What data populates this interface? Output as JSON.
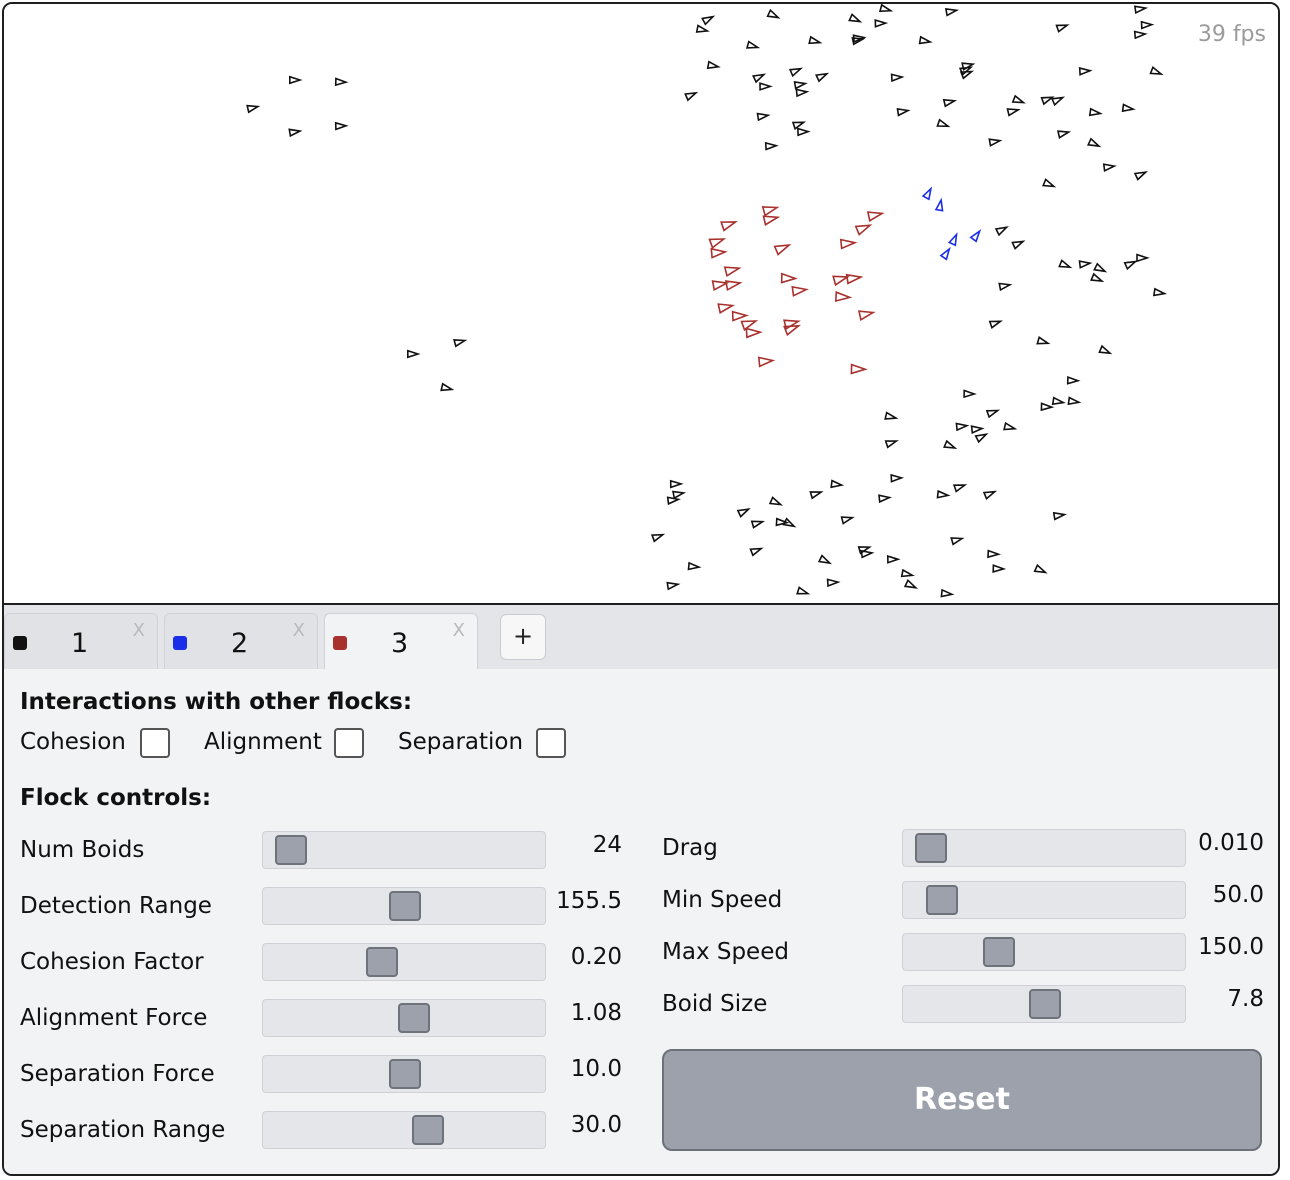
{
  "fps": "39 fps",
  "colors": {
    "flock1": "#111111",
    "flock2": "#1a2ee8",
    "flock3": "#a8312d",
    "accent": "#9ca1ab"
  },
  "tabs": [
    {
      "label": "1",
      "close": "X",
      "color": "#111111"
    },
    {
      "label": "2",
      "close": "X",
      "color": "#1a2ee8"
    },
    {
      "label": "3",
      "close": "X",
      "color": "#a8312d"
    }
  ],
  "add_tab": "+",
  "interactions": {
    "heading": "Interactions with other flocks:",
    "cohesion": {
      "label": "Cohesion",
      "checked": false
    },
    "alignment": {
      "label": "Alignment",
      "checked": false
    },
    "separation": {
      "label": "Separation",
      "checked": false
    }
  },
  "flock_controls": {
    "heading": "Flock controls:",
    "left": [
      {
        "label": "Num Boids",
        "value": "24",
        "fraction": 0.0
      },
      {
        "label": "Detection Range",
        "value": "155.5",
        "fraction": 0.5
      },
      {
        "label": "Cohesion Factor",
        "value": "0.20",
        "fraction": 0.4
      },
      {
        "label": "Alignment Force",
        "value": "1.08",
        "fraction": 0.54
      },
      {
        "label": "Separation Force",
        "value": "10.0",
        "fraction": 0.5
      },
      {
        "label": "Separation Range",
        "value": "30.0",
        "fraction": 0.6
      }
    ],
    "right": [
      {
        "label": "Drag",
        "value": "0.010",
        "fraction": 0.0
      },
      {
        "label": "Min Speed",
        "value": "50.0",
        "fraction": 0.05
      },
      {
        "label": "Max Speed",
        "value": "150.0",
        "fraction": 0.3
      },
      {
        "label": "Boid Size",
        "value": "7.8",
        "fraction": 0.5
      }
    ],
    "reset_label": "Reset"
  }
}
